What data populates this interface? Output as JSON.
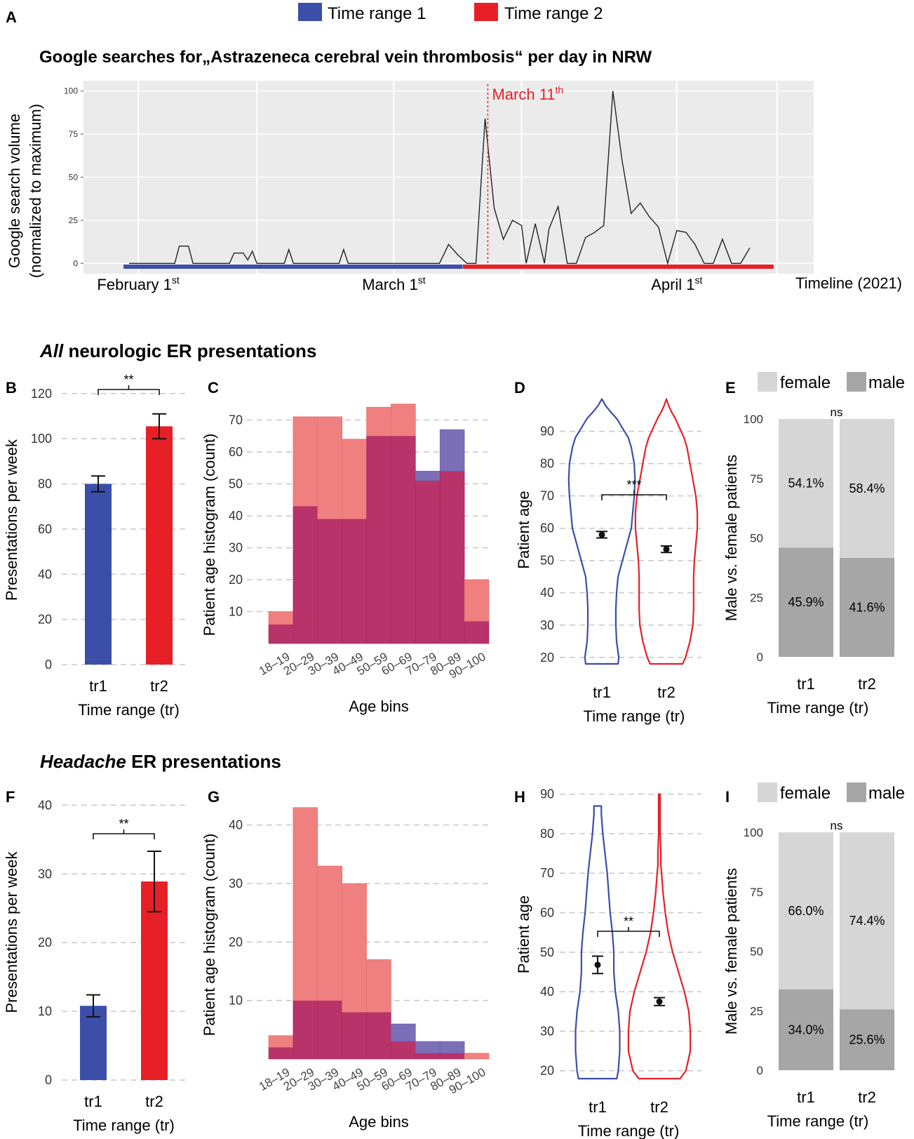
{
  "colors": {
    "tr1": "#3b4ea8",
    "tr2": "#e62026",
    "trPale": "#f08080",
    "overlap": "#b8336a",
    "blueOver": "#7b6fb8",
    "female": "#d6d6d6",
    "male": "#a6a6a6",
    "panelBg": "#ebebeb",
    "grid": "#c8c8c8"
  },
  "legend": {
    "tr1": "Time range 1",
    "tr2": "Time range 2"
  },
  "panel_letters": {
    "A": "A",
    "B": "B",
    "C": "C",
    "D": "D",
    "E": "E",
    "F": "F",
    "G": "G",
    "H": "H",
    "I": "I"
  },
  "section_all": {
    "italic": "All",
    "rest": " neurologic ER presentations"
  },
  "section_headache": {
    "italic": "Headache",
    "rest": " ER presentations"
  },
  "chart_data": [
    {
      "id": "A",
      "type": "line",
      "title": "Google searches for„Astrazeneca cerebral vein thrombosis“ per day in NRW",
      "ylabel1": "Google search volume",
      "ylabel2": "(normalized to maximum)",
      "xlabel": "Timeline (2021)",
      "x_ticks": [
        {
          "day": 1,
          "main": "February 1",
          "sup": "st"
        },
        {
          "day": 29,
          "main": "March 1",
          "sup": "st"
        },
        {
          "day": 60,
          "main": "April 1",
          "sup": "st"
        }
      ],
      "annotation": {
        "day": 39.3,
        "main": "March 11",
        "sup": "th"
      },
      "y_ticks": [
        0,
        25,
        50,
        75,
        100
      ],
      "ylim": [
        -6,
        106
      ],
      "xlim": [
        -5,
        75
      ],
      "tr1_range": [
        0,
        36
      ],
      "tr2_range": [
        36.5,
        70
      ],
      "series": [
        [
          0,
          0
        ],
        [
          5,
          0
        ],
        [
          5.5,
          10
        ],
        [
          6.5,
          10
        ],
        [
          7,
          0
        ],
        [
          11,
          0
        ],
        [
          11.5,
          6
        ],
        [
          12.5,
          6
        ],
        [
          13,
          2
        ],
        [
          13.5,
          7
        ],
        [
          14,
          0
        ],
        [
          17,
          0
        ],
        [
          17.5,
          8
        ],
        [
          18,
          0
        ],
        [
          23,
          0
        ],
        [
          23.5,
          8
        ],
        [
          24,
          0
        ],
        [
          28,
          0
        ],
        [
          29,
          0
        ],
        [
          34,
          0
        ],
        [
          35,
          11
        ],
        [
          36,
          5
        ],
        [
          37,
          0
        ],
        [
          38,
          0
        ],
        [
          39,
          84
        ],
        [
          40,
          32
        ],
        [
          41,
          14
        ],
        [
          42,
          25
        ],
        [
          43,
          22
        ],
        [
          43.5,
          0
        ],
        [
          44.5,
          23
        ],
        [
          45.5,
          0
        ],
        [
          46,
          20
        ],
        [
          47,
          33
        ],
        [
          48,
          0
        ],
        [
          49,
          0
        ],
        [
          50,
          15
        ],
        [
          51,
          18
        ],
        [
          52,
          22
        ],
        [
          53,
          100
        ],
        [
          54,
          60
        ],
        [
          55,
          29
        ],
        [
          56,
          35
        ],
        [
          57,
          27
        ],
        [
          58,
          21
        ],
        [
          59,
          0
        ],
        [
          60,
          19
        ],
        [
          61,
          18
        ],
        [
          62,
          11
        ],
        [
          63,
          0
        ],
        [
          64,
          0
        ],
        [
          65,
          14
        ],
        [
          66,
          0
        ],
        [
          67,
          0
        ],
        [
          68,
          9
        ]
      ]
    },
    {
      "id": "B",
      "type": "bar",
      "ylabel": "Presentations per week",
      "xlabel": "Time range (tr)",
      "categories": [
        "tr1",
        "tr2"
      ],
      "values": [
        80,
        105.5
      ],
      "errors": [
        3.5,
        5.5
      ],
      "ylim": [
        0,
        128
      ],
      "y_ticks": [
        0,
        20,
        40,
        60,
        80,
        100,
        120
      ],
      "significance": "**"
    },
    {
      "id": "C",
      "type": "bar",
      "ylabel": "Patient age histogram (count)",
      "xlabel": "Age bins",
      "categories": [
        "18–19",
        "20–29",
        "30–39",
        "40–49",
        "50–59",
        "60–69",
        "70–79",
        "80–89",
        "90–100"
      ],
      "series": [
        {
          "name": "Time range 1",
          "values": [
            6,
            43,
            39,
            39,
            65,
            65,
            54,
            67,
            7
          ]
        },
        {
          "name": "Time range 2",
          "values": [
            10,
            71,
            71,
            64,
            74,
            75,
            51,
            54,
            20
          ]
        }
      ],
      "ylim": [
        0,
        78
      ],
      "y_ticks": [
        10,
        20,
        30,
        40,
        50,
        60,
        70
      ]
    },
    {
      "id": "D",
      "type": "violin",
      "ylabel": "Patient age",
      "xlabel": "Time range (tr)",
      "categories": [
        "tr1",
        "tr2"
      ],
      "means": [
        58,
        53.5
      ],
      "errors": [
        1,
        1
      ],
      "ylim": [
        18,
        101
      ],
      "y_ticks": [
        20,
        30,
        40,
        50,
        60,
        70,
        80,
        90
      ],
      "significance": "***",
      "violins": [
        {
          "ages": [
            18,
            20,
            25,
            30,
            35,
            40,
            45,
            50,
            55,
            60,
            65,
            70,
            75,
            80,
            85,
            88,
            91,
            94,
            96,
            98,
            100
          ],
          "half_widths": [
            0.22,
            0.23,
            0.2,
            0.19,
            0.19,
            0.2,
            0.22,
            0.28,
            0.34,
            0.4,
            0.42,
            0.44,
            0.45,
            0.44,
            0.4,
            0.36,
            0.28,
            0.2,
            0.12,
            0.05,
            0
          ]
        },
        {
          "ages": [
            18,
            20,
            25,
            30,
            35,
            40,
            45,
            50,
            55,
            60,
            65,
            70,
            75,
            80,
            85,
            88,
            91,
            94,
            96,
            98,
            100
          ],
          "half_widths": [
            0.22,
            0.26,
            0.32,
            0.36,
            0.37,
            0.37,
            0.37,
            0.38,
            0.4,
            0.42,
            0.42,
            0.4,
            0.36,
            0.32,
            0.28,
            0.24,
            0.18,
            0.12,
            0.07,
            0.03,
            0
          ]
        }
      ]
    },
    {
      "id": "E",
      "type": "bar",
      "ylabel": "Male vs. female patients",
      "xlabel": "Time range (tr)",
      "legend": [
        "female",
        "male"
      ],
      "categories": [
        "tr1",
        "tr2"
      ],
      "female": [
        54.1,
        58.4
      ],
      "male": [
        45.9,
        41.6
      ],
      "female_labels": [
        "54.1%",
        "58.4%"
      ],
      "male_labels": [
        "45.9%",
        "41.6%"
      ],
      "ylim": [
        0,
        100
      ],
      "y_ticks": [
        0,
        25,
        50,
        75,
        100
      ],
      "significance": "ns"
    },
    {
      "id": "F",
      "type": "bar",
      "ylabel": "Presentations per week",
      "xlabel": "Time range (tr)",
      "categories": [
        "tr1",
        "tr2"
      ],
      "values": [
        10.8,
        28.9
      ],
      "errors": [
        1.6,
        4.4
      ],
      "ylim": [
        0,
        43
      ],
      "y_ticks": [
        0,
        10,
        20,
        30,
        40
      ],
      "significance": "**"
    },
    {
      "id": "G",
      "type": "bar",
      "ylabel": "Patient age histogram (count)",
      "xlabel": "Age bins",
      "categories": [
        "18–19",
        "20–29",
        "30–39",
        "40–49",
        "50–59",
        "60–69",
        "70–79",
        "80–89",
        "90–100"
      ],
      "series": [
        {
          "name": "Time range 1",
          "values": [
            2,
            10,
            10,
            8,
            8,
            6,
            3,
            3,
            0
          ]
        },
        {
          "name": "Time range 2",
          "values": [
            4,
            43,
            33,
            30,
            17,
            3,
            1,
            1,
            1
          ]
        }
      ],
      "ylim": [
        0,
        45
      ],
      "y_ticks": [
        10,
        20,
        30,
        40
      ]
    },
    {
      "id": "H",
      "type": "violin",
      "ylabel": "Patient age",
      "xlabel": "Time range (tr)",
      "categories": [
        "tr1",
        "tr2"
      ],
      "means": [
        46.8,
        37.5
      ],
      "errors": [
        2.2,
        1
      ],
      "ylim": [
        18,
        91
      ],
      "y_ticks": [
        20,
        30,
        40,
        50,
        60,
        70,
        80,
        90
      ],
      "significance": "**",
      "violins": [
        {
          "ages": [
            18,
            20,
            25,
            30,
            35,
            40,
            45,
            50,
            55,
            60,
            65,
            70,
            75,
            80,
            85,
            87
          ],
          "half_widths": [
            0.26,
            0.28,
            0.3,
            0.3,
            0.28,
            0.24,
            0.22,
            0.22,
            0.2,
            0.17,
            0.15,
            0.13,
            0.1,
            0.07,
            0.05,
            0.05
          ]
        },
        {
          "ages": [
            18,
            20,
            25,
            30,
            35,
            40,
            45,
            50,
            55,
            60,
            65,
            70,
            72,
            75,
            80,
            85,
            90
          ],
          "half_widths": [
            0.28,
            0.36,
            0.42,
            0.42,
            0.4,
            0.34,
            0.26,
            0.18,
            0.12,
            0.08,
            0.05,
            0.03,
            0.02,
            0.02,
            0.01,
            0.01,
            0.01
          ]
        }
      ]
    },
    {
      "id": "I",
      "type": "bar",
      "ylabel": "Male vs. female patients",
      "xlabel": "Time range (tr)",
      "legend": [
        "female",
        "male"
      ],
      "categories": [
        "tr1",
        "tr2"
      ],
      "female": [
        66.0,
        74.4
      ],
      "male": [
        34.0,
        25.6
      ],
      "female_labels": [
        "66.0%",
        "74.4%"
      ],
      "male_labels": [
        "34.0%",
        "25.6%"
      ],
      "ylim": [
        0,
        100
      ],
      "y_ticks": [
        0,
        25,
        50,
        75,
        100
      ],
      "significance": "ns"
    }
  ]
}
